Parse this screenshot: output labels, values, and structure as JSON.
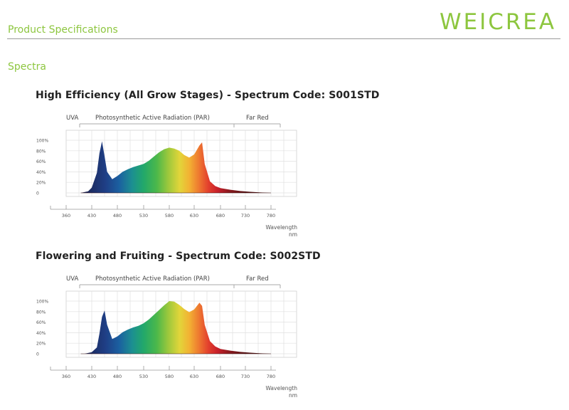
{
  "header": {
    "section_title": "Product Specifications",
    "brand_logo_text": "WEICREA",
    "brand_color": "#8dc63f"
  },
  "spectra_label": "Spectra",
  "chart_data": [
    {
      "type": "area",
      "title": "High Efficiency (All Grow Stages) - Spectrum Code: S001STD",
      "band_labels": [
        "UVA",
        "Photosynthetic Active Radiation (PAR)",
        "Far Red"
      ],
      "xlabel": "Wavelength",
      "xunit": "nm",
      "x_ticks": [
        360,
        430,
        480,
        530,
        580,
        630,
        680,
        730,
        780
      ],
      "y_ticks": [
        "0",
        "20%",
        "40%",
        "60%",
        "80%",
        "100%"
      ],
      "ylim": [
        0,
        100
      ],
      "grid": true,
      "x": [
        400,
        420,
        430,
        440,
        445,
        450,
        455,
        460,
        470,
        480,
        490,
        500,
        510,
        520,
        530,
        540,
        550,
        560,
        570,
        580,
        590,
        600,
        610,
        620,
        630,
        640,
        645,
        650,
        660,
        670,
        680,
        700,
        720,
        740,
        760,
        780
      ],
      "y": [
        0,
        3,
        10,
        38,
        75,
        98,
        70,
        40,
        26,
        32,
        40,
        45,
        49,
        52,
        55,
        61,
        69,
        77,
        83,
        86,
        84,
        80,
        72,
        67,
        73,
        90,
        96,
        55,
        22,
        13,
        9,
        6,
        3.5,
        2,
        0.8,
        0
      ]
    },
    {
      "type": "area",
      "title": "Flowering and Fruiting - Spectrum Code: S002STD",
      "band_labels": [
        "UVA",
        "Photosynthetic Active Radiation (PAR)",
        "Far Red"
      ],
      "xlabel": "Wavelength",
      "xunit": "nm",
      "x_ticks": [
        360,
        430,
        480,
        530,
        580,
        630,
        680,
        730,
        780
      ],
      "y_ticks": [
        "0",
        "20%",
        "40%",
        "60%",
        "80%",
        "100%"
      ],
      "ylim": [
        0,
        100
      ],
      "grid": true,
      "x": [
        410,
        430,
        440,
        445,
        450,
        455,
        460,
        470,
        480,
        490,
        500,
        510,
        520,
        530,
        540,
        550,
        560,
        570,
        580,
        590,
        600,
        610,
        620,
        630,
        640,
        645,
        650,
        660,
        670,
        680,
        700,
        720,
        740,
        760,
        780
      ],
      "y": [
        0,
        3,
        12,
        38,
        70,
        82,
        55,
        28,
        33,
        41,
        46,
        50,
        53,
        58,
        65,
        74,
        83,
        92,
        100,
        99,
        93,
        85,
        79,
        84,
        97,
        91,
        55,
        24,
        14,
        9,
        6,
        3.5,
        2,
        0.8,
        0
      ]
    }
  ]
}
